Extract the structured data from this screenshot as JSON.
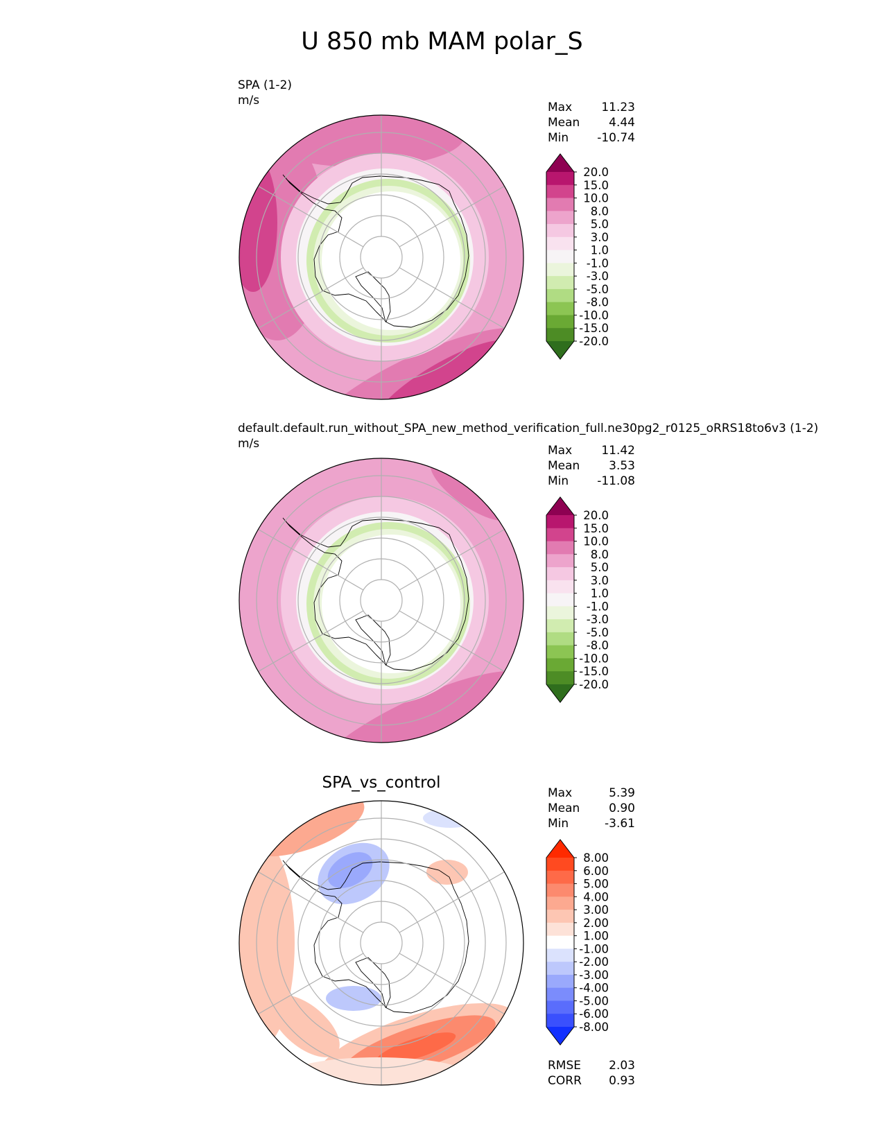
{
  "title": "U 850 mb MAM polar_S",
  "panels": [
    {
      "id": "test",
      "label": "SPA (1-2)",
      "units": "m/s",
      "center_title": "",
      "stats": {
        "max_label": "Max",
        "max": "11.23",
        "mean_label": "Mean",
        "mean": "4.44",
        "min_label": "Min",
        "min": "-10.74"
      },
      "colorbar": {
        "levels": [
          "20.0",
          "15.0",
          "10.0",
          "8.0",
          "5.0",
          "3.0",
          "1.0",
          "-1.0",
          "-3.0",
          "-5.0",
          "-8.0",
          "-10.0",
          "-15.0",
          "-20.0"
        ],
        "colors": [
          "#8e0152",
          "#b8166e",
          "#d2448d",
          "#e27bb1",
          "#eda4cc",
          "#f5c8e2",
          "#f9e2ef",
          "#f7f4f6",
          "#ebf5dc",
          "#d1ecb0",
          "#b0dc83",
          "#8cc553",
          "#6aa934",
          "#4d8c25",
          "#2f6e1d"
        ]
      },
      "chart_data": {
        "type": "heatmap",
        "projection": "polar stereographic (south)",
        "variable": "U 850 mb",
        "units": "m/s",
        "field_max": 11.23,
        "field_mean": 4.44,
        "field_min": -10.74
      }
    },
    {
      "id": "reference",
      "label": "default.default.run_without_SPA_new_method_verification_full.ne30pg2_r0125_oRRS18to6v3 (1-2)",
      "units": "m/s",
      "center_title": "",
      "stats": {
        "max_label": "Max",
        "max": "11.42",
        "mean_label": "Mean",
        "mean": "3.53",
        "min_label": "Min",
        "min": "-11.08"
      },
      "colorbar": {
        "levels": [
          "20.0",
          "15.0",
          "10.0",
          "8.0",
          "5.0",
          "3.0",
          "1.0",
          "-1.0",
          "-3.0",
          "-5.0",
          "-8.0",
          "-10.0",
          "-15.0",
          "-20.0"
        ],
        "colors": [
          "#8e0152",
          "#b8166e",
          "#d2448d",
          "#e27bb1",
          "#eda4cc",
          "#f5c8e2",
          "#f9e2ef",
          "#f7f4f6",
          "#ebf5dc",
          "#d1ecb0",
          "#b0dc83",
          "#8cc553",
          "#6aa934",
          "#4d8c25",
          "#2f6e1d"
        ]
      },
      "chart_data": {
        "type": "heatmap",
        "projection": "polar stereographic (south)",
        "variable": "U 850 mb",
        "units": "m/s",
        "field_max": 11.42,
        "field_mean": 3.53,
        "field_min": -11.08
      }
    },
    {
      "id": "diff",
      "label": "",
      "units": "",
      "center_title": "SPA_vs_control",
      "stats": {
        "max_label": "Max",
        "max": "5.39",
        "mean_label": "Mean",
        "mean": "0.90",
        "min_label": "Min",
        "min": "-3.61"
      },
      "extra_stats": {
        "rmse_label": "RMSE",
        "rmse": "2.03",
        "corr_label": "CORR",
        "corr": "0.93"
      },
      "colorbar": {
        "levels": [
          "8.00",
          "6.00",
          "5.00",
          "4.00",
          "3.00",
          "2.00",
          "1.00",
          "-1.00",
          "-2.00",
          "-3.00",
          "-4.00",
          "-5.00",
          "-6.00",
          "-8.00"
        ],
        "colors": [
          "#ff2a00",
          "#ff4a20",
          "#fe6a48",
          "#fc8a6e",
          "#fca990",
          "#fdc6b3",
          "#fde2d8",
          "#ffffff",
          "#dbe2fd",
          "#bdc8fc",
          "#9aa9fc",
          "#7b8cfc",
          "#5a6dfc",
          "#3a50fd",
          "#1230ff"
        ]
      },
      "chart_data": {
        "type": "heatmap",
        "projection": "polar stereographic (south)",
        "variable": "U 850 mb difference",
        "field_max": 5.39,
        "field_mean": 0.9,
        "field_min": -3.61,
        "rmse": 2.03,
        "corr": 0.93
      }
    }
  ]
}
